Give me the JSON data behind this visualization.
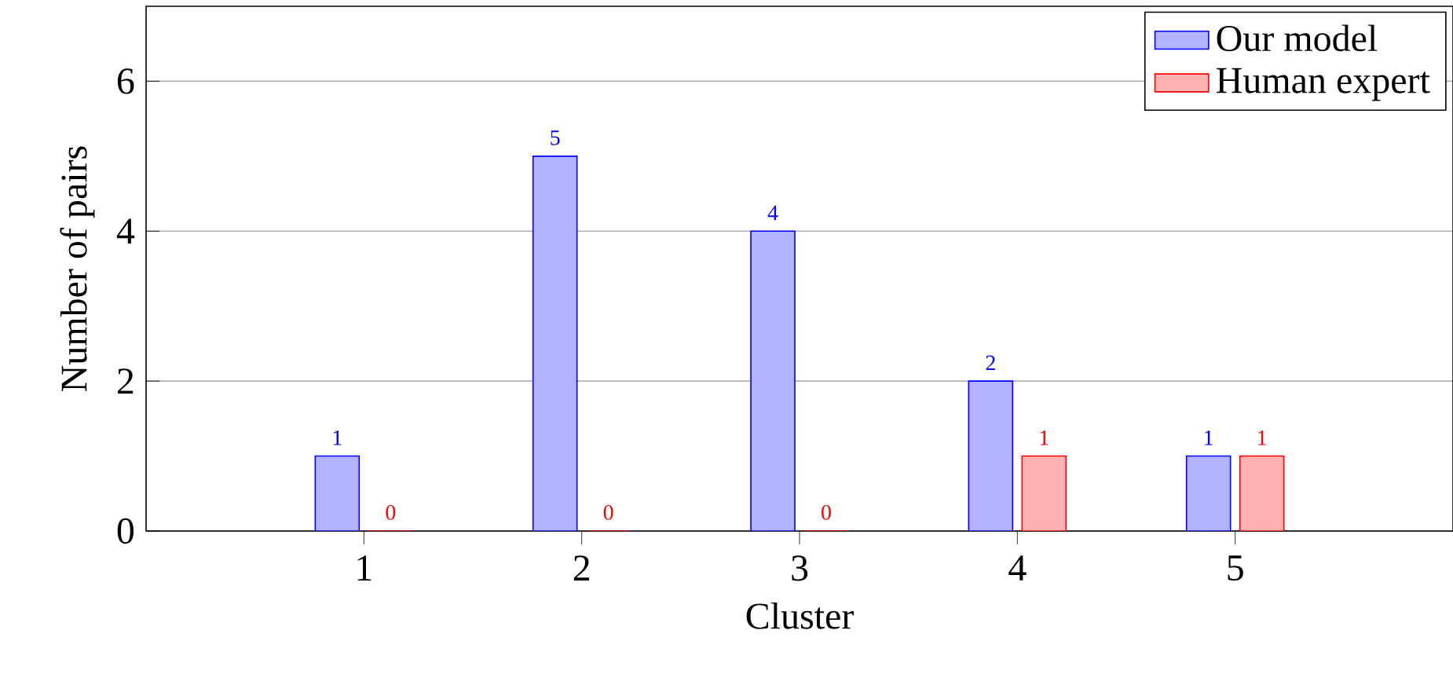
{
  "chart_data": {
    "type": "bar",
    "xlabel": "Cluster",
    "ylabel": "Number of pairs",
    "x": [
      1,
      2,
      3,
      4,
      5
    ],
    "series": [
      {
        "name": "Our model",
        "color": "#0000ff",
        "values": [
          1,
          5,
          4,
          2,
          1
        ]
      },
      {
        "name": "Human expert",
        "color": "#ff0000",
        "values": [
          0,
          0,
          0,
          1,
          1
        ]
      }
    ],
    "xlim": [
      0,
      6
    ],
    "xticks": [
      1,
      2,
      3,
      4,
      5
    ],
    "ylim": [
      0,
      7
    ],
    "yticks": [
      0,
      2,
      4,
      6
    ],
    "grid": "y",
    "legend": "top right",
    "data_labels": true
  }
}
